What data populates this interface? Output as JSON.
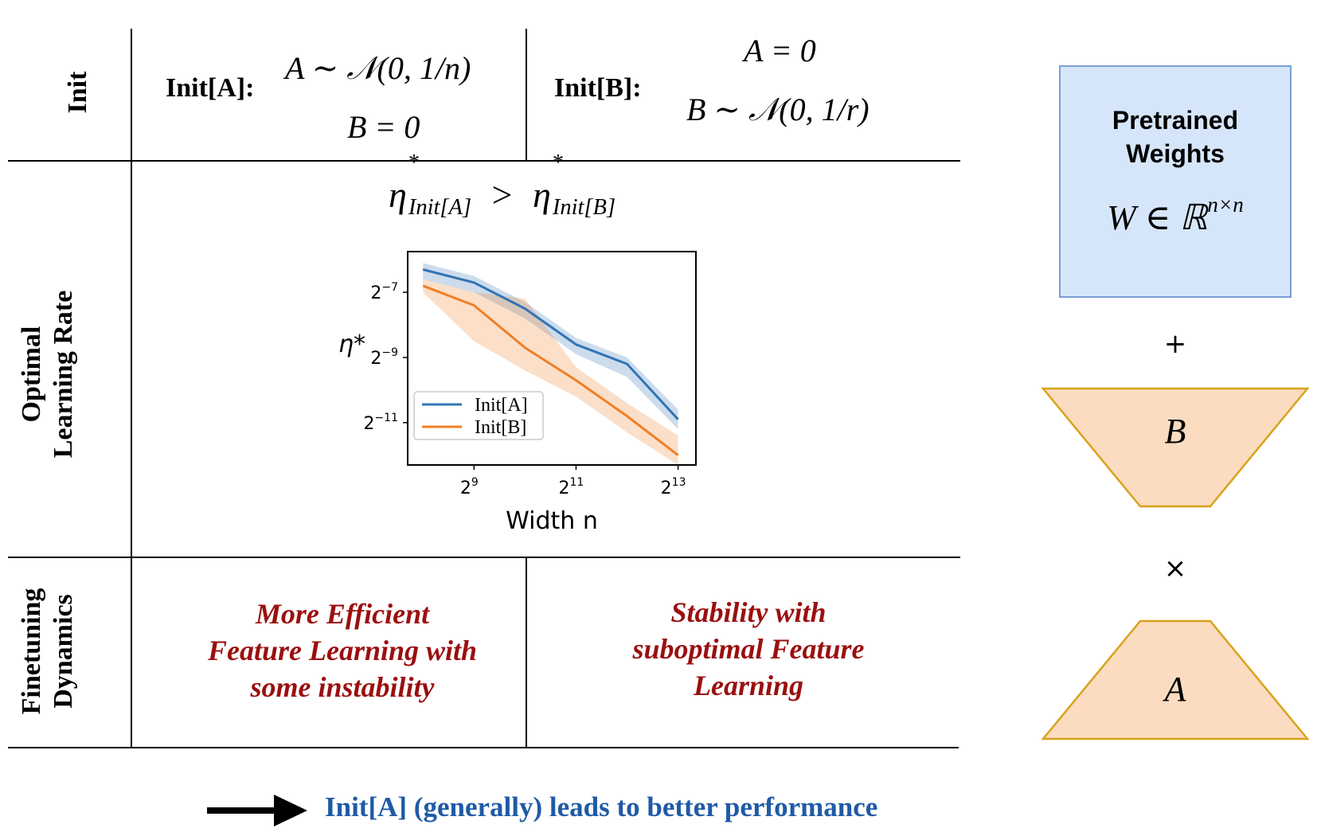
{
  "rows": {
    "init_label": "Init",
    "lr_label_line1": "Optimal",
    "lr_label_line2": "Learning Rate",
    "dyn_label_line1": "Finetuning",
    "dyn_label_line2": "Dynamics"
  },
  "init_a": {
    "label": "Init[A]:",
    "line1": "A ∼ 𝒩(0, 1/n)",
    "line2": "B = 0"
  },
  "init_b": {
    "label": "Init[B]:",
    "line1": "A = 0",
    "line2": "B ∼ 𝒩(0, 1/r)"
  },
  "lr_inequality": {
    "eta": "η",
    "star": "*",
    "sub_a": "Init[A]",
    "gt": ">",
    "sub_b": "Init[B]"
  },
  "chart_data": {
    "type": "line",
    "xlabel": "Width n",
    "ylabel": "η*",
    "x_scale": "log2",
    "y_scale": "log2",
    "x": [
      256,
      512,
      1024,
      2048,
      4096,
      8192
    ],
    "x_ticks": [
      {
        "value": 512,
        "base": "2",
        "exp": "9"
      },
      {
        "value": 2048,
        "base": "2",
        "exp": "11"
      },
      {
        "value": 8192,
        "base": "2",
        "exp": "13"
      }
    ],
    "y_ticks": [
      {
        "value": -7,
        "base": "2",
        "exp": "−7"
      },
      {
        "value": -9,
        "base": "2",
        "exp": "−9"
      },
      {
        "value": -11,
        "base": "2",
        "exp": "−11"
      }
    ],
    "xlim_log2": [
      7.7,
      13.35
    ],
    "ylim_log2": [
      -12.3,
      -5.75
    ],
    "legend_position": "lower-left",
    "series": [
      {
        "name": "Init[A]",
        "color": "#3274b5",
        "values_log2": [
          -6.3,
          -6.7,
          -7.5,
          -8.6,
          -9.2,
          -10.9
        ],
        "band_low": [
          -6.1,
          -6.5,
          -7.3,
          -8.4,
          -9.0,
          -10.6
        ],
        "band_high": [
          -6.6,
          -7.0,
          -7.8,
          -8.9,
          -9.6,
          -11.2
        ]
      },
      {
        "name": "Init[B]",
        "color": "#ef7f26",
        "values_log2": [
          -6.8,
          -7.4,
          -8.7,
          -9.7,
          -10.8,
          -12.0
        ],
        "band_low": [
          -6.6,
          -7.0,
          -7.2,
          -9.3,
          -10.4,
          -11.4
        ],
        "band_high": [
          -7.0,
          -8.5,
          -9.4,
          -10.2,
          -11.3,
          -12.3
        ]
      }
    ]
  },
  "dynamics": {
    "a_line1": "More Efficient",
    "a_line2": "Feature Learning with",
    "a_line3": "some instability",
    "b_line1": "Stability with",
    "b_line2": "suboptimal Feature",
    "b_line3": "Learning"
  },
  "footer": {
    "text": "Init[A] (generally) leads to better performance"
  },
  "right_panel": {
    "pretrained_line1": "Pretrained",
    "pretrained_line2": "Weights",
    "w_math": "W ∈ ℝ",
    "w_sup": "n×n",
    "plus": "+",
    "b_label": "B",
    "times": "×",
    "a_label": "A",
    "box_color": "#d6e6fa",
    "trap_color": "#fbdcc0",
    "trap_stroke": "#d9a21a"
  }
}
